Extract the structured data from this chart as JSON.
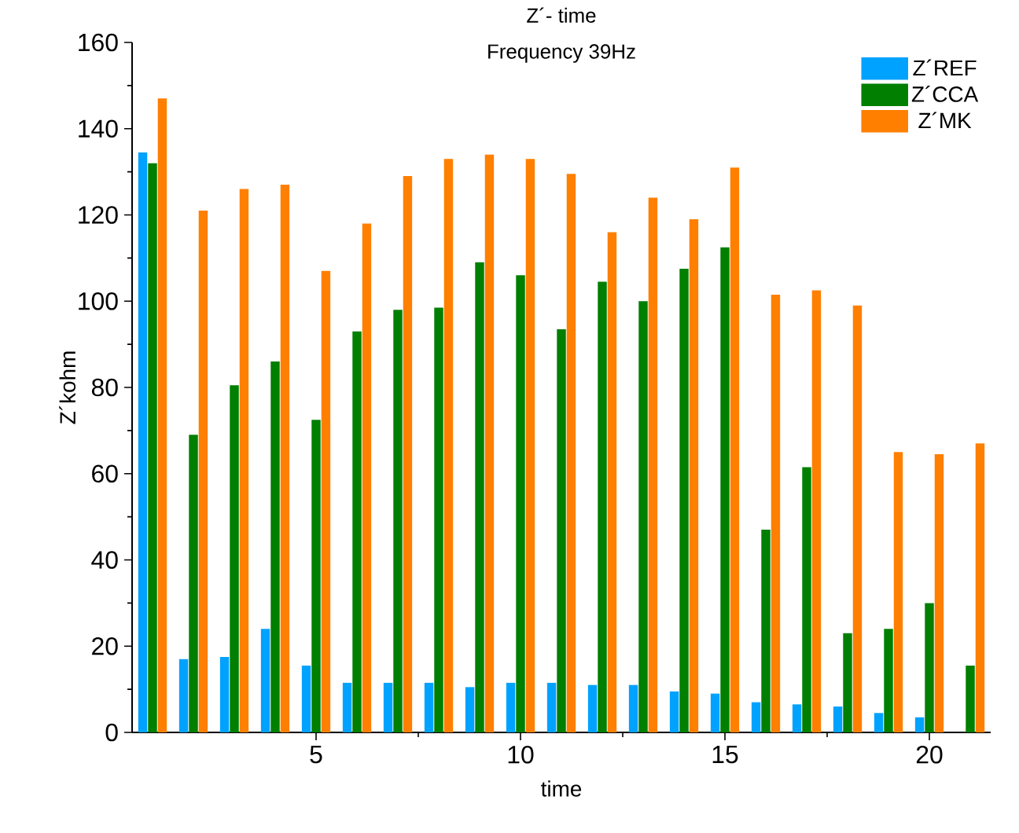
{
  "chart_data": {
    "type": "bar",
    "title": "Z´- time",
    "subtitle": "Frequency 39Hz",
    "xlabel": "time",
    "ylabel": "Z´kohm",
    "x": [
      1,
      2,
      3,
      4,
      5,
      6,
      7,
      8,
      9,
      10,
      11,
      12,
      13,
      14,
      15,
      16,
      17,
      18,
      19,
      20,
      21
    ],
    "xlim": [
      0.5,
      21.5
    ],
    "xticks": [
      5,
      10,
      15,
      20
    ],
    "ylim": [
      0,
      160
    ],
    "yticks": [
      0,
      20,
      40,
      60,
      80,
      100,
      120,
      140,
      160
    ],
    "legend": "top right",
    "series": [
      {
        "name": "Z´REF",
        "color": "#00a2ff",
        "values": [
          134.5,
          17,
          17.5,
          24,
          15.5,
          11.5,
          11.5,
          11.5,
          10.5,
          11.5,
          11.5,
          11,
          11,
          9.5,
          9,
          7,
          6.5,
          6,
          4.5,
          3.5,
          null
        ]
      },
      {
        "name": "Z´CCA",
        "color": "#007f00",
        "values": [
          132,
          69,
          80.5,
          86,
          72.5,
          93,
          98,
          98.5,
          109,
          106,
          93.5,
          104.5,
          100,
          107.5,
          112.5,
          47,
          61.5,
          23,
          24,
          30,
          15.5
        ]
      },
      {
        "name": "Z´MK",
        "color": "#ff7f00",
        "values": [
          147,
          121,
          126,
          127,
          107,
          118,
          129,
          133,
          134,
          133,
          129.5,
          116,
          124,
          119,
          131,
          101.5,
          102.5,
          99,
          65,
          64.5,
          67
        ]
      }
    ]
  }
}
